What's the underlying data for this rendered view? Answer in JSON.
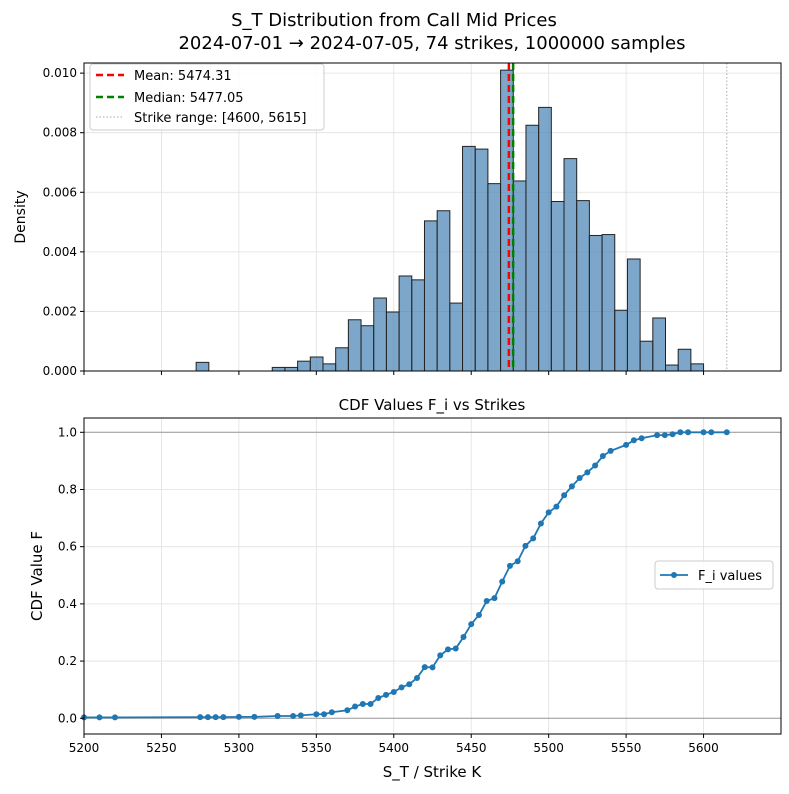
{
  "figure": {
    "suptitle_line1": "S_T Distribution from Call Mid Prices",
    "suptitle_line2": "2024-07-01 → 2024-07-05, 74 strikes, 1000000 samples"
  },
  "chart_data": [
    {
      "type": "bar",
      "subtype": "histogram",
      "title": "",
      "xlabel": "",
      "ylabel": "Density",
      "xlim": [
        5200,
        5650
      ],
      "ylim": [
        0,
        0.01034
      ],
      "xticks": [
        5200,
        5250,
        5300,
        5350,
        5400,
        5450,
        5500,
        5550,
        5600
      ],
      "yticks": [
        0.0,
        0.002,
        0.004,
        0.006,
        0.008,
        0.01
      ],
      "ytick_labels": [
        "0.000",
        "0.002",
        "0.004",
        "0.006",
        "0.008",
        "0.010"
      ],
      "show_xtick_labels": false,
      "grid": true,
      "bin_start": 5272.4,
      "bin_width": 8.19,
      "values": [
        0.00029,
        0,
        0,
        0,
        0,
        0,
        0.00012,
        0.00012,
        0.00033,
        0.00047,
        0.00024,
        0.00078,
        0.00172,
        0.00152,
        0.00245,
        0.00198,
        0.00319,
        0.00306,
        0.00504,
        0.00538,
        0.00228,
        0.00754,
        0.00745,
        0.00629,
        0.0101,
        0.00638,
        0.00825,
        0.00885,
        0.00569,
        0.00713,
        0.00572,
        0.00455,
        0.00458,
        0.00204,
        0.00376,
        0.001,
        0.00178,
        0.0002,
        0.00073,
        0.00024
      ],
      "bar_color": "#4682b4",
      "vlines": [
        {
          "label": "Mean: 5474.31",
          "x": 5474.31,
          "color": "#ff0000",
          "style": "dashed"
        },
        {
          "label": "Median: 5477.05",
          "x": 5477.05,
          "color": "#008000",
          "style": "dashed"
        },
        {
          "label": "Strike range: [4600, 5615]",
          "x": [
            4600,
            5615
          ],
          "color": "#aaaaaa",
          "style": "dotted"
        }
      ],
      "legend_position": "top-left"
    },
    {
      "type": "line",
      "title": "CDF Values F_i vs Strikes",
      "xlabel": "S_T / Strike K",
      "ylabel": "CDF Value F",
      "xlim": [
        5200,
        5650
      ],
      "ylim": [
        -0.055,
        1.05
      ],
      "xticks": [
        5200,
        5250,
        5300,
        5350,
        5400,
        5450,
        5500,
        5550,
        5600
      ],
      "xtick_labels": [
        "5200",
        "5250",
        "5300",
        "5350",
        "5400",
        "5450",
        "5500",
        "5550",
        "5600"
      ],
      "yticks": [
        0,
        0.2,
        0.4,
        0.6,
        0.8,
        1.0
      ],
      "ytick_labels": [
        "0.0",
        "0.2",
        "0.4",
        "0.6",
        "0.8",
        "1.0"
      ],
      "grid": true,
      "hlines": [
        0,
        1
      ],
      "legend_position": "center-right",
      "series": [
        {
          "name": "F_i values",
          "color": "#1f77b4",
          "x": [
            5200,
            5210,
            5220,
            5275,
            5280,
            5285,
            5290,
            5300,
            5310,
            5325,
            5335,
            5340,
            5350,
            5355,
            5360,
            5370,
            5375,
            5380,
            5385,
            5390,
            5395,
            5400,
            5405,
            5410,
            5415,
            5420,
            5425,
            5430,
            5435,
            5440,
            5445,
            5450,
            5455,
            5460,
            5465,
            5470,
            5475,
            5480,
            5485,
            5490,
            5495,
            5500,
            5505,
            5510,
            5515,
            5520,
            5525,
            5530,
            5535,
            5540,
            5550,
            5555,
            5560,
            5570,
            5575,
            5580,
            5585,
            5590,
            5600,
            5605,
            5615
          ],
          "y": [
            0.003,
            0.003,
            0.003,
            0.004,
            0.004,
            0.004,
            0.004,
            0.005,
            0.005,
            0.008,
            0.008,
            0.01,
            0.014,
            0.014,
            0.021,
            0.028,
            0.041,
            0.05,
            0.05,
            0.071,
            0.082,
            0.092,
            0.108,
            0.119,
            0.141,
            0.179,
            0.178,
            0.22,
            0.241,
            0.244,
            0.284,
            0.329,
            0.361,
            0.41,
            0.42,
            0.478,
            0.533,
            0.549,
            0.603,
            0.629,
            0.681,
            0.72,
            0.74,
            0.78,
            0.811,
            0.84,
            0.86,
            0.884,
            0.917,
            0.935,
            0.956,
            0.972,
            0.979,
            0.99,
            0.99,
            0.993,
            1.0,
            1.0,
            1.0,
            1.0,
            1.0
          ]
        }
      ]
    }
  ]
}
